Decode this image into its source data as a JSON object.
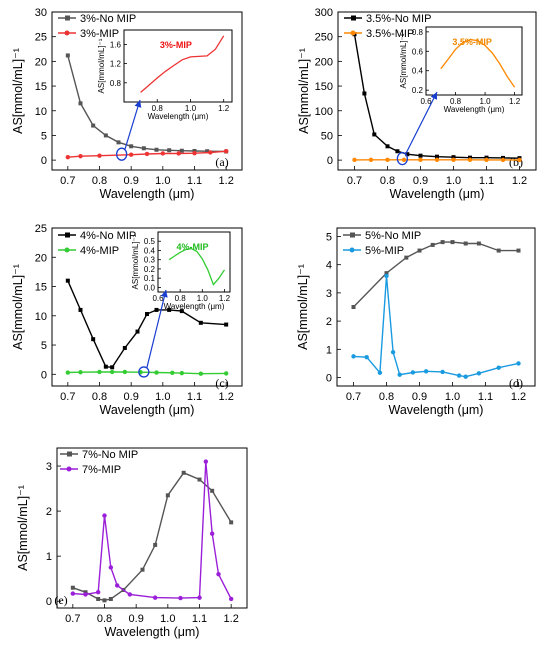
{
  "chart_data": [
    {
      "type": "line",
      "tag": "(a)",
      "xlabel": "Wavelength (μm)",
      "ylabel": "AS[mmol/mL]⁻¹",
      "xlim": [
        0.65,
        1.25
      ],
      "ylim": [
        -2,
        30
      ],
      "xticks": [
        "0.7",
        "0.8",
        "0.9",
        "1.0",
        "1.1",
        "1.2"
      ],
      "yticks": [
        "0",
        "5",
        "10",
        "15",
        "20",
        "25",
        "30"
      ],
      "legend_position": "top-left",
      "series": [
        {
          "name": "3%-No MIP",
          "color": "#555555",
          "marker": "square",
          "x": [
            0.7,
            0.74,
            0.78,
            0.82,
            0.86,
            0.9,
            0.94,
            0.98,
            1.02,
            1.06,
            1.1,
            1.14,
            1.2
          ],
          "y": [
            21.2,
            11.5,
            7.0,
            5.0,
            3.6,
            2.8,
            2.4,
            2.1,
            2.0,
            1.9,
            1.85,
            1.8,
            1.75
          ]
        },
        {
          "name": "3%-MIP",
          "color": "#ee3333",
          "marker": "circle",
          "x": [
            0.7,
            0.74,
            0.8,
            0.9,
            0.95,
            1.0,
            1.05,
            1.1,
            1.15,
            1.2
          ],
          "y": [
            0.6,
            0.8,
            0.9,
            1.1,
            1.25,
            1.35,
            1.35,
            1.4,
            1.55,
            1.8
          ]
        }
      ],
      "inset": {
        "title": "3%-MIP",
        "title_color": "#ee1111",
        "ylabel": "AS[mmol/mL]⁻¹",
        "xlabel": "Wavelength (μm)",
        "xlim": [
          0.6,
          1.25
        ],
        "ylim": [
          0.4,
          1.9
        ],
        "xticks": [
          "0.8",
          "1.0",
          "1.2"
        ],
        "yticks": [
          "0.8",
          "1.2",
          "1.6"
        ],
        "color": "#ee3333",
        "x": [
          0.7,
          0.75,
          0.8,
          0.85,
          0.9,
          0.95,
          1.0,
          1.05,
          1.1,
          1.15,
          1.2
        ],
        "y": [
          0.6,
          0.75,
          0.9,
          1.04,
          1.16,
          1.28,
          1.34,
          1.35,
          1.36,
          1.5,
          1.78
        ]
      }
    },
    {
      "type": "line",
      "tag": "(b)",
      "xlabel": "Wavelength (μm)",
      "ylabel": "AS[mmol/mL]⁻¹",
      "xlim": [
        0.65,
        1.25
      ],
      "ylim": [
        -20,
        300
      ],
      "xticks": [
        "0.7",
        "0.8",
        "0.9",
        "1.0",
        "1.1",
        "1.2"
      ],
      "yticks": [
        "0",
        "50",
        "100",
        "150",
        "200",
        "250",
        "300"
      ],
      "legend_position": "top-left",
      "series": [
        {
          "name": "3.5%-No MIP",
          "color": "#000000",
          "marker": "square",
          "x": [
            0.7,
            0.73,
            0.76,
            0.8,
            0.83,
            0.86,
            0.9,
            0.95,
            1.0,
            1.05,
            1.1,
            1.15,
            1.2
          ],
          "y": [
            255,
            135,
            52,
            28,
            18,
            12,
            9,
            7,
            6,
            5,
            5,
            4.5,
            4
          ]
        },
        {
          "name": "3.5%-MIP",
          "color": "#ff8800",
          "marker": "circle",
          "x": [
            0.7,
            0.75,
            0.8,
            0.85,
            0.9,
            0.95,
            1.0,
            1.05,
            1.1,
            1.15,
            1.2
          ],
          "y": [
            0.5,
            0.6,
            0.6,
            0.7,
            0.7,
            0.7,
            0.7,
            0.6,
            0.5,
            0.4,
            0.3
          ]
        }
      ],
      "inset": {
        "title": "3.5%-MIP",
        "title_color": "#ee8800",
        "ylabel": "AS[mmol/mL]⁻¹",
        "xlabel": "Wavelength (μm)",
        "xlim": [
          0.6,
          1.25
        ],
        "ylim": [
          0.15,
          0.85
        ],
        "xticks": [
          "0.6",
          "0.8",
          "1.0",
          "1.2"
        ],
        "yticks": [
          "0.2",
          "0.4",
          "0.6",
          "0.8"
        ],
        "color": "#ff8800",
        "x": [
          0.7,
          0.75,
          0.8,
          0.85,
          0.9,
          0.95,
          1.0,
          1.05,
          1.1,
          1.15,
          1.2
        ],
        "y": [
          0.42,
          0.52,
          0.62,
          0.69,
          0.72,
          0.71,
          0.66,
          0.58,
          0.47,
          0.34,
          0.23
        ]
      }
    },
    {
      "type": "line",
      "tag": "(c)",
      "xlabel": "Wavelength (μm)",
      "ylabel": "AS[mmol/mL]⁻¹",
      "xlim": [
        0.65,
        1.25
      ],
      "ylim": [
        -2,
        25
      ],
      "xticks": [
        "0.7",
        "0.8",
        "0.9",
        "1.0",
        "1.1",
        "1.2"
      ],
      "yticks": [
        "0",
        "5",
        "10",
        "15",
        "20",
        "25"
      ],
      "legend_position": "top-left",
      "series": [
        {
          "name": "4%-No MIP",
          "color": "#000000",
          "marker": "square",
          "x": [
            0.7,
            0.74,
            0.78,
            0.82,
            0.84,
            0.88,
            0.92,
            0.95,
            0.98,
            1.02,
            1.06,
            1.12,
            1.2
          ],
          "y": [
            16.0,
            11.0,
            6.0,
            1.3,
            1.2,
            4.5,
            7.3,
            10.3,
            11.0,
            11.0,
            10.8,
            8.8,
            8.5
          ]
        },
        {
          "name": "4%-MIP",
          "color": "#33cc33",
          "marker": "circle",
          "x": [
            0.7,
            0.74,
            0.8,
            0.84,
            0.88,
            0.93,
            0.98,
            1.03,
            1.06,
            1.12,
            1.2
          ],
          "y": [
            0.3,
            0.35,
            0.4,
            0.4,
            0.4,
            0.35,
            0.3,
            0.25,
            0.2,
            0.1,
            0.15
          ]
        }
      ],
      "inset": {
        "title": "4%-MIP",
        "title_color": "#22bb22",
        "ylabel": "AS[mmol/mL]⁻¹",
        "xlabel": "Wavelength (μm)",
        "xlim": [
          0.6,
          1.25
        ],
        "ylim": [
          -0.05,
          0.6
        ],
        "xticks": [
          "0.6",
          "0.8",
          "1.0",
          "1.2"
        ],
        "yticks": [
          "0.0",
          "0.1",
          "0.2",
          "0.3",
          "0.4",
          "0.5"
        ],
        "color": "#33cc33",
        "x": [
          0.7,
          0.75,
          0.8,
          0.85,
          0.9,
          0.95,
          1.0,
          1.05,
          1.1,
          1.15,
          1.2
        ],
        "y": [
          0.3,
          0.34,
          0.38,
          0.41,
          0.42,
          0.39,
          0.31,
          0.19,
          0.03,
          0.1,
          0.19
        ]
      }
    },
    {
      "type": "line",
      "tag": "(d)",
      "xlabel": "Wavelength (μm)",
      "ylabel": "AS[mmol/mL]⁻¹",
      "xlim": [
        0.65,
        1.25
      ],
      "ylim": [
        -0.3,
        5.3
      ],
      "xticks": [
        "0.7",
        "0.8",
        "0.9",
        "1.0",
        "1.1",
        "1.2"
      ],
      "yticks": [
        "0",
        "1",
        "2",
        "3",
        "4",
        "5"
      ],
      "legend_position": "top-left",
      "series": [
        {
          "name": "5%-No MIP",
          "color": "#555555",
          "marker": "square",
          "x": [
            0.7,
            0.8,
            0.86,
            0.9,
            0.94,
            0.97,
            1.0,
            1.04,
            1.08,
            1.14,
            1.2
          ],
          "y": [
            2.5,
            3.7,
            4.25,
            4.5,
            4.7,
            4.8,
            4.8,
            4.75,
            4.75,
            4.5,
            4.5
          ]
        },
        {
          "name": "5%-MIP",
          "color": "#1a9ae0",
          "marker": "circle",
          "x": [
            0.7,
            0.74,
            0.78,
            0.8,
            0.82,
            0.84,
            0.88,
            0.92,
            0.97,
            1.02,
            1.04,
            1.08,
            1.14,
            1.2
          ],
          "y": [
            0.75,
            0.72,
            0.17,
            3.6,
            0.9,
            0.1,
            0.18,
            0.22,
            0.2,
            0.07,
            0.03,
            0.15,
            0.35,
            0.5
          ]
        }
      ]
    },
    {
      "type": "line",
      "tag": "(e)",
      "xlabel": "Wavelength (μm)",
      "ylabel": "AS[mmol/mL]⁻¹",
      "xlim": [
        0.65,
        1.25
      ],
      "ylim": [
        -0.15,
        3.4
      ],
      "xticks": [
        "0.7",
        "0.8",
        "0.9",
        "1.0",
        "1.1",
        "1.2"
      ],
      "yticks": [
        "0",
        "1",
        "2",
        "3"
      ],
      "legend_position": "top-left",
      "series": [
        {
          "name": "7%-No MIP",
          "color": "#555555",
          "marker": "square",
          "x": [
            0.7,
            0.74,
            0.78,
            0.8,
            0.82,
            0.86,
            0.92,
            0.96,
            1.0,
            1.05,
            1.1,
            1.14,
            1.2
          ],
          "y": [
            0.3,
            0.2,
            0.05,
            0.02,
            0.05,
            0.25,
            0.7,
            1.25,
            2.35,
            2.85,
            2.7,
            2.45,
            1.75
          ]
        },
        {
          "name": "7%-MIP",
          "color": "#9b1fd8",
          "marker": "circle",
          "x": [
            0.7,
            0.74,
            0.78,
            0.8,
            0.82,
            0.84,
            0.88,
            0.96,
            1.04,
            1.1,
            1.12,
            1.14,
            1.16,
            1.2
          ],
          "y": [
            0.17,
            0.15,
            0.2,
            1.9,
            0.75,
            0.35,
            0.15,
            0.08,
            0.07,
            0.08,
            3.1,
            1.5,
            0.6,
            0.05
          ]
        }
      ]
    }
  ]
}
